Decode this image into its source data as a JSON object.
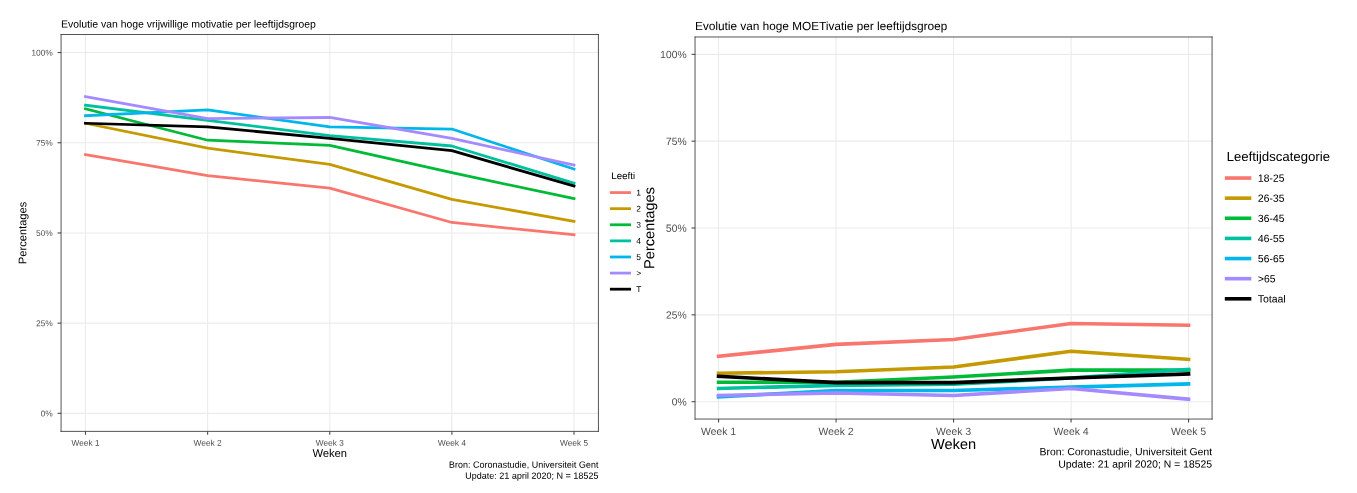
{
  "chart_data": [
    {
      "type": "line",
      "title": "Evolutie van hoge vrijwillige motivatie per leeftijdsgroep",
      "xlabel": "Weken",
      "ylabel": "Percentages",
      "legend_title": "Leefti",
      "legend": "right",
      "grid": true,
      "categories": [
        "Week 1",
        "Week 2",
        "Week 3",
        "Week 4",
        "Week 5"
      ],
      "ylim": [
        -5,
        105
      ],
      "yticks": [
        {
          "value": 0,
          "label": "0%"
        },
        {
          "value": 25,
          "label": "25%"
        },
        {
          "value": 50,
          "label": "50%"
        },
        {
          "value": 75,
          "label": "75%"
        },
        {
          "value": 100,
          "label": "100%"
        }
      ],
      "series": [
        {
          "name": "1",
          "color": "#f8766d",
          "values": [
            71.7,
            65.9,
            62.4,
            52.9,
            49.5
          ]
        },
        {
          "name": "2",
          "color": "#c49a00",
          "values": [
            80.4,
            73.5,
            69.0,
            59.3,
            53.2
          ]
        },
        {
          "name": "3",
          "color": "#00ba38",
          "values": [
            84.4,
            75.7,
            74.3,
            66.7,
            59.5
          ]
        },
        {
          "name": "4",
          "color": "#00c19f",
          "values": [
            85.4,
            81.2,
            77.0,
            74.1,
            63.8
          ]
        },
        {
          "name": "5",
          "color": "#00b6eb",
          "values": [
            82.5,
            84.1,
            79.4,
            78.8,
            67.7
          ]
        },
        {
          "name": ">",
          "color": "#a58aff",
          "values": [
            87.8,
            81.7,
            82.0,
            76.2,
            68.8
          ]
        },
        {
          "name": "T",
          "color": "#000000",
          "values": [
            80.4,
            79.4,
            76.2,
            72.8,
            63.0
          ]
        }
      ],
      "annotations": [
        "Bron: Coronastudie, Universiteit Gent",
        "Update: 21 april 2020; N = 18525"
      ]
    },
    {
      "type": "line",
      "title": "Evolutie van hoge MOETivatie per leeftijdsgroep",
      "xlabel": "Weken",
      "ylabel": "Percentages",
      "legend_title": "Leeftijdscategorie",
      "legend": "right",
      "grid": true,
      "categories": [
        "Week 1",
        "Week 2",
        "Week 3",
        "Week 4",
        "Week 5"
      ],
      "ylim": [
        -5,
        105
      ],
      "yticks": [
        {
          "value": 0,
          "label": "0%"
        },
        {
          "value": 25,
          "label": "25%"
        },
        {
          "value": 50,
          "label": "50%"
        },
        {
          "value": 75,
          "label": "75%"
        },
        {
          "value": 100,
          "label": "100%"
        }
      ],
      "series": [
        {
          "name": "18-25",
          "color": "#f8766d",
          "values": [
            13.1,
            16.5,
            17.9,
            22.5,
            22.0
          ]
        },
        {
          "name": "26-35",
          "color": "#c49a00",
          "values": [
            8.2,
            8.6,
            10.0,
            14.5,
            12.2
          ]
        },
        {
          "name": "36-45",
          "color": "#00ba38",
          "values": [
            5.6,
            5.6,
            7.1,
            9.1,
            9.1
          ]
        },
        {
          "name": "46-55",
          "color": "#00c19f",
          "values": [
            3.8,
            4.7,
            5.0,
            6.8,
            9.3
          ]
        },
        {
          "name": "56-65",
          "color": "#00b6eb",
          "values": [
            1.4,
            3.2,
            3.2,
            4.2,
            5.1
          ]
        },
        {
          "name": ">65",
          "color": "#a58aff",
          "values": [
            1.8,
            2.5,
            1.8,
            3.8,
            0.7
          ]
        },
        {
          "name": "Totaal",
          "color": "#000000",
          "values": [
            7.3,
            5.5,
            5.5,
            6.8,
            8.0
          ]
        }
      ],
      "annotations": [
        "Bron: Coronastudie, Universiteit Gent",
        "Update: 21 april 2020; N = 18525"
      ]
    }
  ]
}
